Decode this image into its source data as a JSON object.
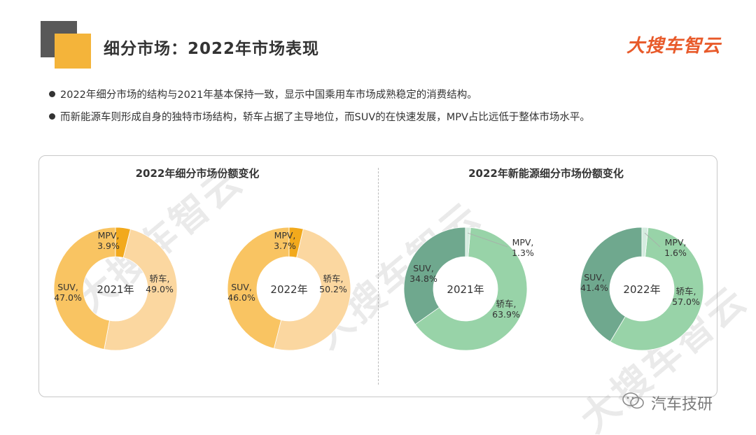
{
  "header": {
    "title": "细分市场：2022年市场表现",
    "logo": "大搜车智云"
  },
  "bullets": [
    "2022年细分市场的结构与2021年基本保持一致，显示中国乘用车市场成熟稳定的消费结构。",
    "而新能源车则形成自身的独特市场结构，轿车占据了主导地位，而SUV的在快速发展，MPV占比远低于整体市场水平。"
  ],
  "sections": {
    "left_title": "2022年细分市场份额变化",
    "right_title": "2022年新能源细分市场份额变化"
  },
  "watermark": {
    "brand": "大搜车智云",
    "footer": "汽车技研"
  },
  "colors": {
    "market_car": "#fbd7a0",
    "market_suv": "#f9c462",
    "market_mpv": "#f2a91c",
    "nev_car": "#98d3a8",
    "nev_suv": "#6fa88e",
    "nev_mpv": "#d5ece0"
  },
  "chart_data": [
    {
      "type": "pie",
      "style": "donut",
      "center_label": "2021年",
      "slices": [
        {
          "label": "轿车,",
          "value": 49.0,
          "value_label": "49.0%"
        },
        {
          "label": "SUV,",
          "value": 47.0,
          "value_label": "47.0%"
        },
        {
          "label": "MPV,",
          "value": 3.9,
          "value_label": "3.9%"
        }
      ]
    },
    {
      "type": "pie",
      "style": "donut",
      "center_label": "2022年",
      "slices": [
        {
          "label": "轿车,",
          "value": 50.2,
          "value_label": "50.2%"
        },
        {
          "label": "SUV,",
          "value": 46.0,
          "value_label": "46.0%"
        },
        {
          "label": "MPV,",
          "value": 3.7,
          "value_label": "3.7%"
        }
      ]
    },
    {
      "type": "pie",
      "style": "donut",
      "center_label": "2021年",
      "slices": [
        {
          "label": "轿车,",
          "value": 63.9,
          "value_label": "63.9%"
        },
        {
          "label": "SUV,",
          "value": 34.8,
          "value_label": "34.8%"
        },
        {
          "label": "MPV,",
          "value": 1.3,
          "value_label": "1.3%"
        }
      ]
    },
    {
      "type": "pie",
      "style": "donut",
      "center_label": "2022年",
      "slices": [
        {
          "label": "轿车,",
          "value": 57.0,
          "value_label": "57.0%"
        },
        {
          "label": "SUV,",
          "value": 41.4,
          "value_label": "41.4%"
        },
        {
          "label": "MPV,",
          "value": 1.6,
          "value_label": "1.6%"
        }
      ]
    }
  ]
}
